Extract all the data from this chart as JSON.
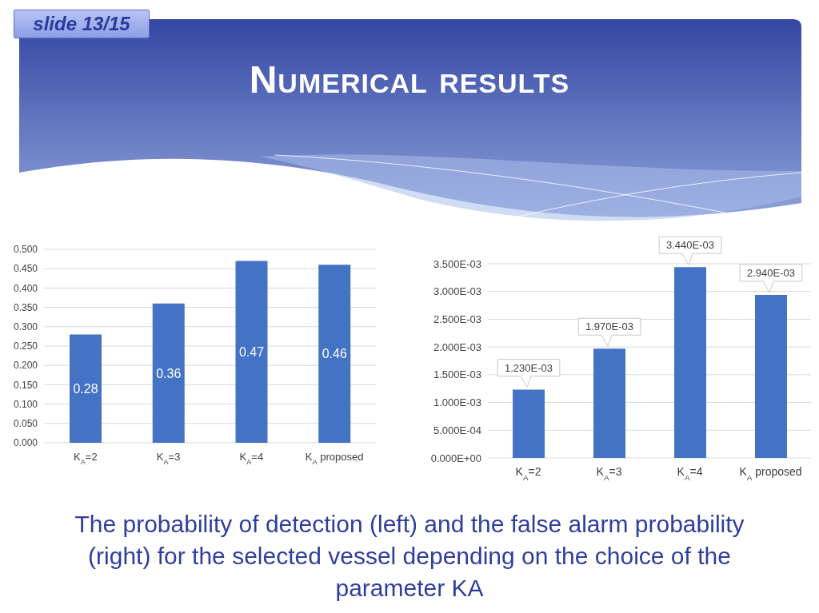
{
  "chart_data": [
    {
      "type": "bar",
      "title": "Numerical results",
      "categories": [
        "K$_{A}$=2",
        "K$_{A}$=3",
        "K$_{A}$=4",
        "K$_{A}$ proposed"
      ],
      "values": [
        0.28,
        0.36,
        0.47,
        0.46
      ],
      "color": "#4472c4",
      "ylim": [
        0,
        0.5
      ],
      "yticks": [
        {
          "value": 0,
          "label": "0.000"
        },
        {
          "value": 0.05,
          "label": "0.050"
        },
        {
          "value": 0.1,
          "label": "0.100"
        },
        {
          "value": 0.15,
          "label": "0.150"
        },
        {
          "value": 0.2,
          "label": "0.200"
        },
        {
          "value": 0.25,
          "label": "0.250"
        },
        {
          "value": 0.3,
          "label": "0.300"
        },
        {
          "value": 0.35,
          "label": "0.350"
        },
        {
          "value": 0.4,
          "label": "0.400"
        },
        {
          "value": 0.45,
          "label": "0.450"
        },
        {
          "value": 0.5,
          "label": "0.500"
        }
      ],
      "grid": "y",
      "data_labels": true,
      "annotations": [
        "slide 13/15",
        "The probability of detection (left) and the false alarm probability (right) for the selected vessel depending on the choice of the parameter KA"
      ]
    },
    {
      "type": "bar",
      "categories": [
        "K$_{A}$=2",
        "K$_{A}$=3",
        "K$_{A}$=4",
        "K$_{A}$ proposed"
      ],
      "values": [
        0.00123,
        0.00197,
        0.00344,
        0.00294
      ],
      "value_labels": [
        "1.230E-03",
        "1.970E-03",
        "3.440E-03",
        "2.940E-03"
      ],
      "color": "#4472c4",
      "ylim": [
        0,
        0.0035
      ],
      "yticks": [
        {
          "value": 0,
          "label": "0.000E+00"
        },
        {
          "value": 0.0005,
          "label": "5.000E-04"
        },
        {
          "value": 0.001,
          "label": "1.000E-03"
        },
        {
          "value": 0.0015,
          "label": "1.500E-03"
        },
        {
          "value": 0.002,
          "label": "2.000E-03"
        },
        {
          "value": 0.0025,
          "label": "2.500E-03"
        },
        {
          "value": 0.003,
          "label": "3.000E-03"
        },
        {
          "value": 0.0035,
          "label": "3.500E-03"
        }
      ],
      "grid": "y"
    }
  ]
}
